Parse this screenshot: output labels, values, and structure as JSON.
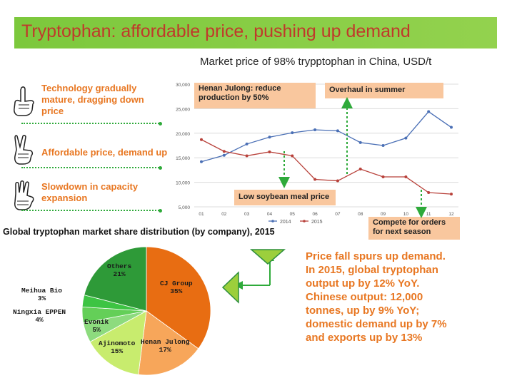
{
  "header": {
    "title": "Tryptophan: affordable price, pushing up demand"
  },
  "reasons": [
    {
      "text": "Technology gradually\nmature, dragging down\nprice",
      "icon": "one-finger-hand-icon"
    },
    {
      "text": "Affordable price, demand up",
      "icon": "two-finger-hand-icon"
    },
    {
      "text": "Slowdown in capacity\nexpansion",
      "icon": "three-finger-hand-icon"
    }
  ],
  "callouts": {
    "henan": "Henan Julong: reduce\nproduction by 50%",
    "overhaul": "Overhaul in summer",
    "soybean": "Low soybean meal price",
    "compete": "Compete for orders\nfor next season"
  },
  "conclusion": "Price fall spurs up demand.\nIn 2015, global tryptophan\noutput up by 12% YoY.\nChinese output: 12,000\ntonnes, up by 9% YoY;\ndomestic demand up by 7%\nand exports up by 13%",
  "colors": {
    "banner": "#7cc83c",
    "title_text": "#c0392b",
    "accent_orange": "#e87722",
    "series_2014": "#4a6fb5",
    "series_2015": "#b8413a",
    "callout_fill": "#f9c79e",
    "arrow_green": "#2eaa3a"
  },
  "chart_data": [
    {
      "type": "line",
      "title": "Market price of 98% trypptophan in China, USD/t",
      "categories": [
        "01",
        "02",
        "03",
        "04",
        "05",
        "06",
        "07",
        "08",
        "09",
        "10",
        "11",
        "12"
      ],
      "ylim": [
        5000,
        30000
      ],
      "yticks": [
        "5,000",
        "10,000",
        "15,000",
        "20,000",
        "25,000",
        "30,000"
      ],
      "grid": true,
      "legend_position": "bottom",
      "series": [
        {
          "name": "2014",
          "values": [
            14200,
            15500,
            17800,
            19200,
            20100,
            20700,
            20500,
            18100,
            17500,
            19000,
            24400,
            21200
          ]
        },
        {
          "name": "2015",
          "values": [
            18700,
            16300,
            15400,
            16200,
            15400,
            10600,
            10300,
            12700,
            11100,
            11100,
            7900,
            7600
          ]
        }
      ]
    },
    {
      "type": "pie",
      "title": "Global tryptophan market share distribution (by company), 2015",
      "labels": [
        "CJ Group",
        "Henan Julong",
        "Ajinomoto",
        "Evonik",
        "Ningxia EPPEN",
        "Meihua Bio",
        "Others"
      ],
      "values": [
        35,
        17,
        15,
        5,
        4,
        3,
        21
      ],
      "display": [
        "35%",
        "17%",
        "15%",
        "5%",
        "4%",
        "3%",
        "21%"
      ],
      "colors": [
        "#e86d12",
        "#f7a65a",
        "#c8ec6e",
        "#8ddb7e",
        "#64cf58",
        "#3dc443",
        "#2e9a38"
      ]
    }
  ]
}
